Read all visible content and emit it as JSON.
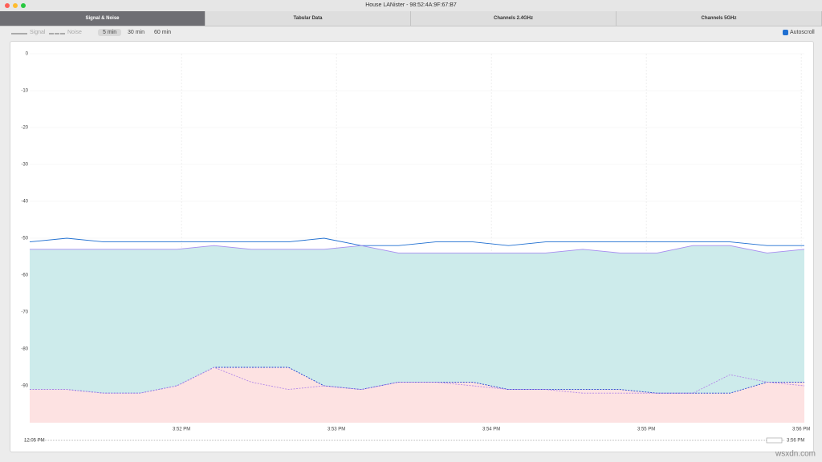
{
  "window": {
    "title": "House LANister - 98:52:4A:9F:67:B7"
  },
  "tabs": [
    "Signal & Noise",
    "Tabular Data",
    "Channels 2.4GHz",
    "Channels 5GHz"
  ],
  "toolbar": {
    "legend": [
      "Signal",
      "Noise"
    ],
    "ranges": [
      "5 min",
      "30 min",
      "60 min"
    ],
    "autoscroll": "Autoscroll"
  },
  "chart_data": {
    "type": "line",
    "x": [
      951.02,
      951.26,
      951.5,
      951.73,
      951.97,
      952.21,
      952.45,
      952.69,
      952.92,
      953.16,
      953.4,
      953.64,
      953.88,
      954.11,
      954.35,
      954.59,
      954.83,
      955.07,
      955.3,
      955.54,
      955.78,
      956.02
    ],
    "series": [
      {
        "name": "Signal",
        "color": "#1f6fd1",
        "dashed": false,
        "fill": null,
        "values": [
          -51,
          -50,
          -51,
          -51,
          -51,
          -51,
          -51,
          -51,
          -50,
          -52,
          -52,
          -51,
          -51,
          -52,
          -51,
          -51,
          -51,
          -51,
          -51,
          -51,
          -52,
          -52
        ]
      },
      {
        "color": "#a68cf0",
        "dashed": false,
        "fill": "#cdebeb",
        "values": [
          -53,
          -53,
          -53,
          -53,
          -53,
          -52,
          -53,
          -53,
          -53,
          -52,
          -54,
          -54,
          -54,
          -54,
          -54,
          -53,
          -54,
          -54,
          -52,
          -52,
          -54,
          -53
        ]
      },
      {
        "name": "Noise",
        "color": "#1f3fd1",
        "dashed": true,
        "fill": "#fde2e2",
        "values": [
          -91,
          -91,
          -92,
          -92,
          -90,
          -85,
          -85,
          -85,
          -90,
          -91,
          -89,
          -89,
          -89,
          -91,
          -91,
          -91,
          -91,
          -92,
          -92,
          -92,
          -89,
          -89
        ]
      },
      {
        "color": "#b48ae8",
        "dashed": true,
        "fill": null,
        "values": [
          -91,
          -91,
          -92,
          -92,
          -90,
          -85,
          -89,
          -91,
          -90,
          -91,
          -89,
          -89,
          -90,
          -91,
          -91,
          -92,
          -92,
          -92,
          -92,
          -87,
          -89,
          -90
        ]
      }
    ],
    "ylim": [
      -100,
      0
    ],
    "yticks": [
      0,
      -10,
      -20,
      -30,
      -40,
      -50,
      -60,
      -70,
      -80,
      -90
    ],
    "xlim": [
      951.02,
      956.02
    ],
    "xticks": [
      {
        "value": 952,
        "label": "3:52 PM"
      },
      {
        "value": 953,
        "label": "3:53 PM"
      },
      {
        "value": 954,
        "label": "3:54 PM"
      },
      {
        "value": 955,
        "label": "3:55 PM"
      },
      {
        "value": 956,
        "label": "3:56 PM"
      }
    ],
    "grid": true
  },
  "scrubber": {
    "start": "12:05 PM",
    "end": "3:56 PM"
  },
  "watermark": "wsxdn.com"
}
